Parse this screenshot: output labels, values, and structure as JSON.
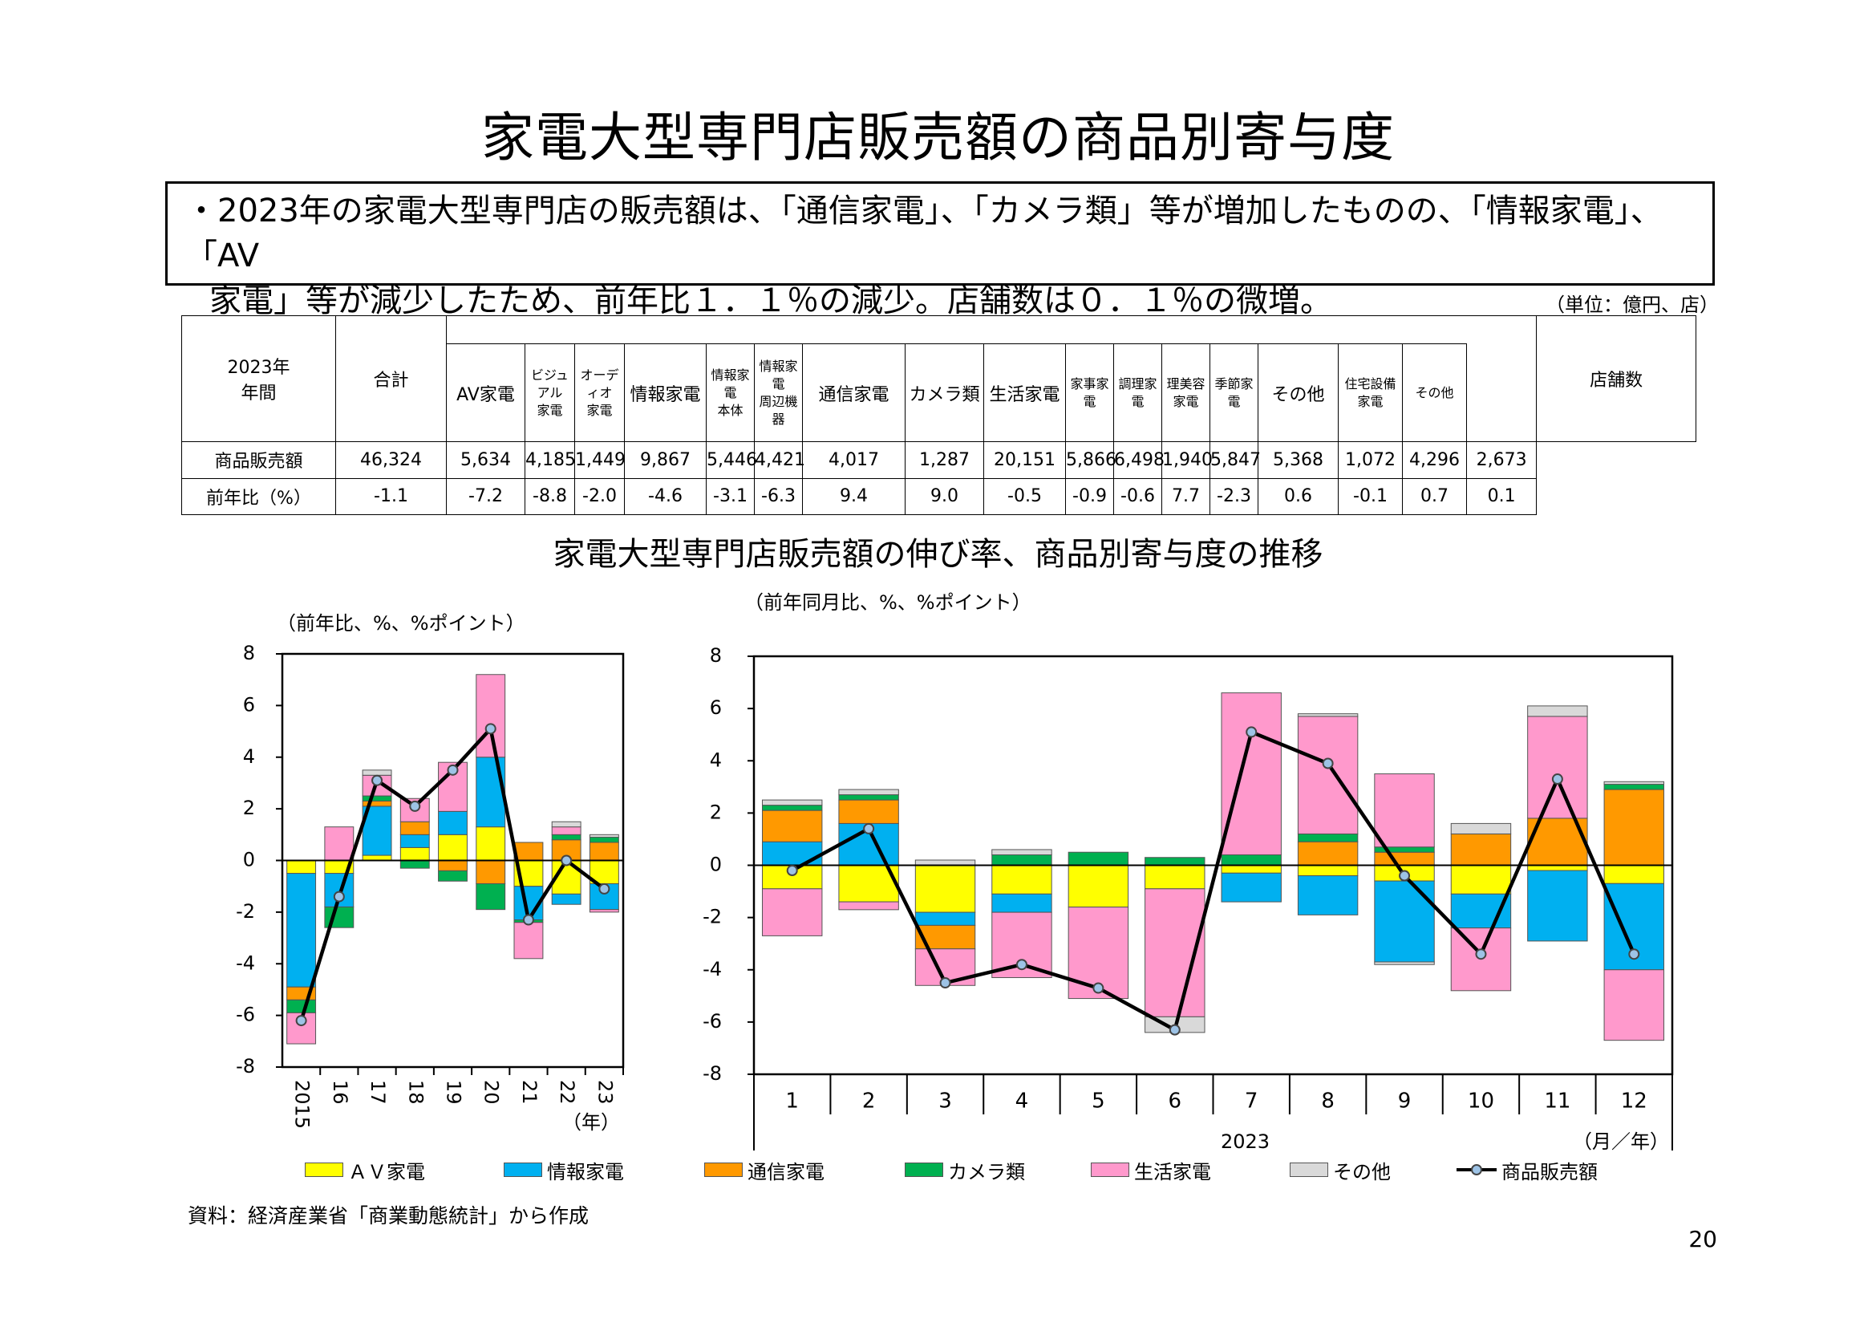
{
  "title": "家電大型専門店販売額の商品別寄与度",
  "summary": {
    "line1": "・2023年の家電大型専門店の販売額は、「通信家電」、「カメラ類」等が増加したものの、「情報家電」、「AV",
    "line2": "家電」等が減少したため、前年比１．１％の減少。店舗数は０．１％の微増。"
  },
  "unit": "（単位：億円、店）",
  "table": {
    "corner": [
      "2023年",
      "年間"
    ],
    "headers": {
      "total": "合計",
      "av": "AV家電",
      "av_visual": [
        "ビジュアル",
        "家電"
      ],
      "av_audio": [
        "オーディオ",
        "家電"
      ],
      "info": "情報家電",
      "info_body": [
        "情報家電",
        "本体"
      ],
      "info_periph": [
        "情報家電",
        "周辺機器"
      ],
      "comm": "通信家電",
      "camera": "カメラ類",
      "life": "生活家電",
      "life_house": "家事家電",
      "life_cook": "調理家電",
      "life_beauty": [
        "理美容",
        "家電"
      ],
      "life_season": "季節家電",
      "other": "その他",
      "other_housing": [
        "住宅設備",
        "家電"
      ],
      "other_other": "その他",
      "stores": "店舗数"
    },
    "rows": [
      {
        "label": "商品販売額",
        "values": [
          "46,324",
          "5,634",
          "4,185",
          "1,449",
          "9,867",
          "5,446",
          "4,421",
          "4,017",
          "1,287",
          "20,151",
          "5,866",
          "6,498",
          "1,940",
          "5,847",
          "5,368",
          "1,072",
          "4,296",
          "2,673"
        ]
      },
      {
        "label": "前年比（%）",
        "values": [
          "-1.1",
          "-7.2",
          "-8.8",
          "-2.0",
          "-4.6",
          "-3.1",
          "-6.3",
          "9.4",
          "9.0",
          "-0.5",
          "-0.9",
          "-0.6",
          "7.7",
          "-2.3",
          "0.6",
          "-0.1",
          "0.7",
          "0.1"
        ]
      }
    ]
  },
  "chart_title": "家電大型専門店販売額の伸び率、商品別寄与度の推移",
  "colors": {
    "av": "#ffff00",
    "info": "#00b0f0",
    "comm": "#ff9900",
    "camera": "#00b050",
    "life": "#ff99cc",
    "other": "#d9d9d9",
    "line": "#000000",
    "marker": "#9dc3e6"
  },
  "legend": [
    "ＡＶ家電",
    "情報家電",
    "通信家電",
    "カメラ類",
    "生活家電",
    "その他",
    "商品販売額"
  ],
  "chart_data": [
    {
      "type": "bar",
      "stacked": true,
      "ylabel": "（前年比、%、%ポイント）",
      "xlabel": "（年）",
      "ylim": [
        -8,
        8
      ],
      "yticks": [
        "8",
        "6",
        "4",
        "2",
        "0",
        "-2",
        "-4",
        "-6",
        "-8"
      ],
      "categories": [
        "2015",
        "16",
        "17",
        "18",
        "19",
        "20",
        "21",
        "22",
        "23"
      ],
      "series": [
        {
          "name": "ＡＶ家電",
          "values": [
            -0.5,
            -0.5,
            0.2,
            0.5,
            1.0,
            1.3,
            -1.0,
            -1.3,
            -0.9
          ]
        },
        {
          "name": "情報家電",
          "values": [
            -4.4,
            -1.3,
            1.9,
            0.5,
            0.9,
            2.7,
            -1.3,
            -0.4,
            -1.0
          ]
        },
        {
          "name": "通信家電",
          "values": [
            -0.5,
            0.0,
            0.2,
            0.5,
            -0.4,
            -0.9,
            0.7,
            0.8,
            0.7
          ]
        },
        {
          "name": "カメラ類",
          "values": [
            -0.5,
            -0.8,
            0.2,
            -0.3,
            -0.4,
            -1.0,
            -0.1,
            0.2,
            0.2
          ]
        },
        {
          "name": "生活家電",
          "values": [
            -1.2,
            1.3,
            0.8,
            0.9,
            1.9,
            3.2,
            -1.4,
            0.3,
            -0.1
          ]
        },
        {
          "name": "その他",
          "values": [
            0.0,
            0.0,
            0.2,
            0.0,
            0.0,
            0.0,
            0.0,
            0.2,
            0.1
          ]
        }
      ],
      "line": {
        "name": "商品販売額",
        "values": [
          -6.2,
          -1.4,
          3.1,
          2.1,
          3.5,
          5.1,
          -2.3,
          0.0,
          -1.1
        ]
      }
    },
    {
      "type": "bar",
      "stacked": true,
      "ylabel": "（前年同月比、%、%ポイント）",
      "xlabel": "（月／年）",
      "year_label": "2023",
      "ylim": [
        -8,
        8
      ],
      "yticks": [
        "8",
        "6",
        "4",
        "2",
        "0",
        "-2",
        "-4",
        "-6",
        "-8"
      ],
      "categories": [
        "1",
        "2",
        "3",
        "4",
        "5",
        "6",
        "7",
        "8",
        "9",
        "10",
        "11",
        "12"
      ],
      "series": [
        {
          "name": "ＡＶ家電",
          "values": [
            -0.9,
            -1.4,
            -1.8,
            -1.1,
            -1.6,
            -0.9,
            -0.3,
            -0.4,
            -0.6,
            -1.1,
            -0.2,
            -0.7
          ]
        },
        {
          "name": "情報家電",
          "values": [
            0.9,
            1.6,
            -0.5,
            -0.7,
            0.0,
            0.0,
            -1.1,
            -1.5,
            -3.1,
            -1.3,
            -2.7,
            -3.3
          ]
        },
        {
          "name": "通信家電",
          "values": [
            1.2,
            0.9,
            -0.9,
            0.0,
            0.0,
            0.0,
            0.0,
            0.9,
            0.5,
            1.2,
            1.8,
            2.9
          ]
        },
        {
          "name": "カメラ類",
          "values": [
            0.2,
            0.2,
            0.0,
            0.4,
            0.5,
            0.3,
            0.4,
            0.3,
            0.2,
            0.0,
            0.0,
            0.2
          ]
        },
        {
          "name": "生活家電",
          "values": [
            -1.8,
            -0.3,
            -1.4,
            -2.5,
            -3.5,
            -4.9,
            6.2,
            4.5,
            2.8,
            -2.4,
            3.9,
            -2.7
          ]
        },
        {
          "name": "その他",
          "values": [
            0.2,
            0.2,
            0.2,
            0.2,
            0.0,
            -0.6,
            0.0,
            0.1,
            -0.1,
            0.4,
            0.4,
            0.1
          ]
        }
      ],
      "line": {
        "name": "商品販売額",
        "values": [
          -0.2,
          1.4,
          -4.5,
          -3.8,
          -4.7,
          -6.3,
          5.1,
          3.9,
          -0.4,
          -3.4,
          3.3,
          -3.4
        ]
      }
    }
  ],
  "source": "資料：経済産業省「商業動態統計」から作成",
  "page_number": "20"
}
